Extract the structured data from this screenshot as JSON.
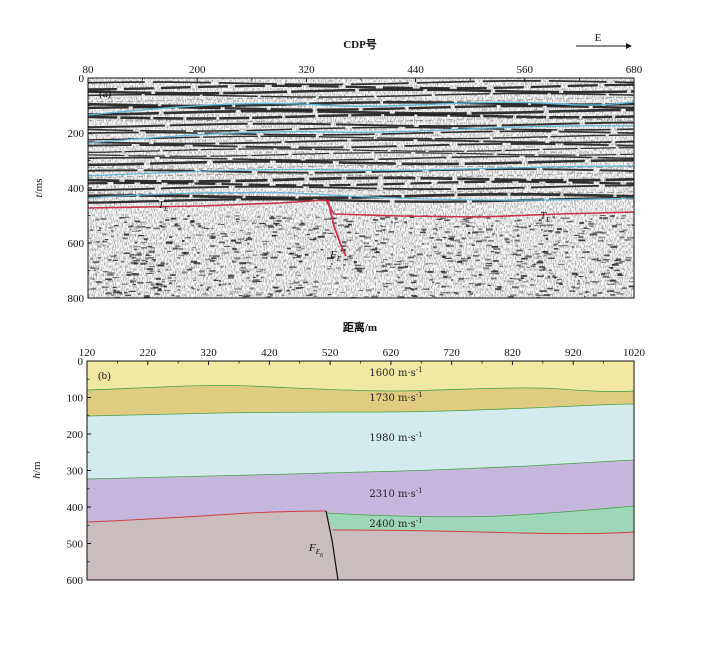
{
  "panel_a": {
    "tag": "(a)",
    "top_axis": {
      "title": "CDP号",
      "ticks": [
        "80",
        "200",
        "320",
        "440",
        "560",
        "680"
      ],
      "range": [
        80,
        680
      ]
    },
    "left_axis": {
      "title_italic": "t",
      "title_unit": "/ms",
      "ticks": [
        "0",
        "200",
        "400",
        "600",
        "800"
      ],
      "range": [
        0,
        800
      ]
    },
    "direction_label": "E",
    "fault_labels": {
      "left": {
        "main": "T",
        "sub": "E"
      },
      "right": {
        "main": "T",
        "sub": "E"
      },
      "fault": {
        "main": "F",
        "sub": "E"
      }
    },
    "colors": {
      "horizon_cyan": "#5fb8d8",
      "horizon_red": "#c8324a",
      "fault": "#d0304a"
    }
  },
  "panel_b": {
    "tag": "(b)",
    "top_axis": {
      "title": "距离/m",
      "ticks": [
        "120",
        "220",
        "320",
        "420",
        "520",
        "620",
        "720",
        "820",
        "920",
        "1020"
      ],
      "range": [
        120,
        1020
      ]
    },
    "left_axis": {
      "title_italic": "h",
      "title_unit": "/m",
      "ticks": [
        "0",
        "100",
        "200",
        "300",
        "400",
        "500",
        "600"
      ],
      "range": [
        0,
        600
      ]
    },
    "layers": [
      {
        "label": "1600 m·s",
        "sup": "-1",
        "color": "#f1e8a2"
      },
      {
        "label": "1730 m·s",
        "sup": "-1",
        "color": "#e0cc80"
      },
      {
        "label": "1980 m·s",
        "sup": "-1",
        "color": "#d3ebec"
      },
      {
        "label": "2310 m·s",
        "sup": "-1",
        "color": "#c4b6dc"
      },
      {
        "label": "2400 m·s",
        "sup": "-1",
        "color": "#9ed6b8"
      },
      {
        "label": "",
        "sup": "",
        "color": "#cbbdbd"
      }
    ],
    "fault_label": {
      "main": "F",
      "sub": "E",
      "subsub": "6"
    },
    "colors": {
      "boundary_green": "#4aa04a",
      "boundary_red": "#d04040",
      "fault": "#111111"
    }
  }
}
